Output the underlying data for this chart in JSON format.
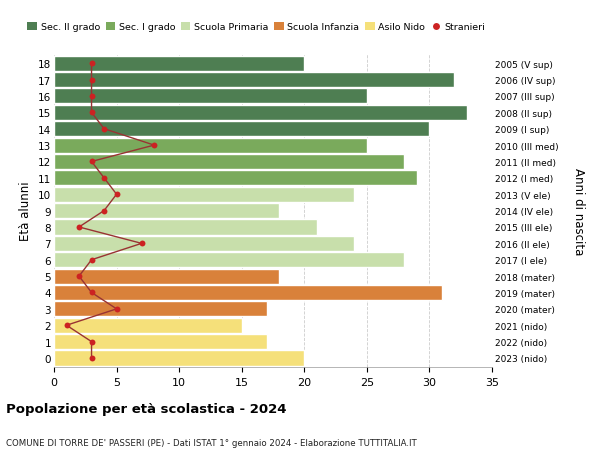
{
  "ages": [
    18,
    17,
    16,
    15,
    14,
    13,
    12,
    11,
    10,
    9,
    8,
    7,
    6,
    5,
    4,
    3,
    2,
    1,
    0
  ],
  "right_labels": [
    "2005 (V sup)",
    "2006 (IV sup)",
    "2007 (III sup)",
    "2008 (II sup)",
    "2009 (I sup)",
    "2010 (III med)",
    "2011 (II med)",
    "2012 (I med)",
    "2013 (V ele)",
    "2014 (IV ele)",
    "2015 (III ele)",
    "2016 (II ele)",
    "2017 (I ele)",
    "2018 (mater)",
    "2019 (mater)",
    "2020 (mater)",
    "2021 (nido)",
    "2022 (nido)",
    "2023 (nido)"
  ],
  "bar_values": [
    20,
    32,
    25,
    33,
    30,
    25,
    28,
    29,
    24,
    18,
    21,
    24,
    28,
    18,
    31,
    17,
    15,
    17,
    20
  ],
  "stranieri_values": [
    3,
    3,
    3,
    3,
    4,
    8,
    3,
    4,
    5,
    4,
    2,
    7,
    3,
    2,
    3,
    5,
    1,
    3,
    3
  ],
  "bar_colors": [
    "#4e7e52",
    "#4e7e52",
    "#4e7e52",
    "#4e7e52",
    "#4e7e52",
    "#7aaa5c",
    "#7aaa5c",
    "#7aaa5c",
    "#c8dfab",
    "#c8dfab",
    "#c8dfab",
    "#c8dfab",
    "#c8dfab",
    "#d9813a",
    "#d9813a",
    "#d9813a",
    "#f5e07a",
    "#f5e07a",
    "#f5e07a"
  ],
  "legend_labels": [
    "Sec. II grado",
    "Sec. I grado",
    "Scuola Primaria",
    "Scuola Infanzia",
    "Asilo Nido",
    "Stranieri"
  ],
  "legend_colors": [
    "#4e7e52",
    "#7aaa5c",
    "#c8dfab",
    "#d9813a",
    "#f5e07a",
    "#cc2222"
  ],
  "ylabel": "Età alunni",
  "right_ylabel": "Anni di nascita",
  "title": "Popolazione per età scolastica - 2024",
  "subtitle": "COMUNE DI TORRE DE' PASSERI (PE) - Dati ISTAT 1° gennaio 2024 - Elaborazione TUTTITALIA.IT",
  "xlim": [
    0,
    35
  ],
  "xticks": [
    0,
    5,
    10,
    15,
    20,
    25,
    30,
    35
  ],
  "stranieri_color": "#cc2222",
  "line_color": "#993333",
  "background_color": "#ffffff",
  "bar_edge_color": "#ffffff",
  "bar_height": 0.92
}
